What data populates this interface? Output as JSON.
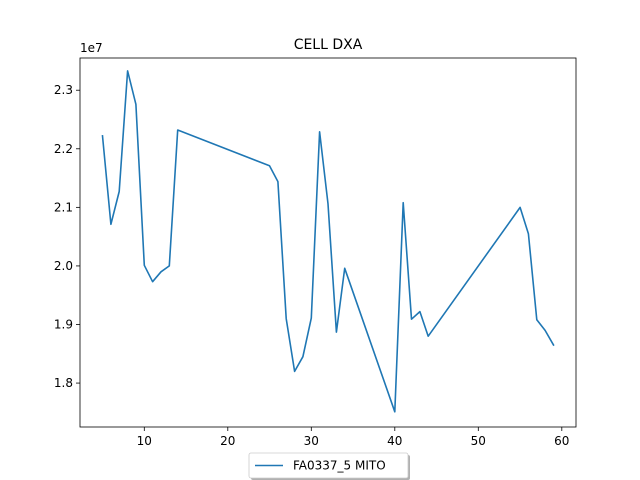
{
  "chart_data": {
    "type": "line",
    "title": "CELL DXA",
    "xlabel": "",
    "ylabel": "",
    "y_offset_label": "1e7",
    "xlim": [
      2.3,
      61.7
    ],
    "ylim": [
      17250000,
      23550000
    ],
    "x_ticks": [
      10,
      20,
      30,
      40,
      50,
      60
    ],
    "y_ticks": [
      18000000,
      19000000,
      20000000,
      21000000,
      22000000,
      23000000
    ],
    "y_tick_labels": [
      "1.8",
      "1.9",
      "2.0",
      "2.1",
      "2.2",
      "2.3"
    ],
    "grid": false,
    "legend_position": "lower-center-outside",
    "series": [
      {
        "name": "FA0337_5 MITO",
        "color": "#1f77b4",
        "x": [
          5,
          6,
          7,
          8,
          9,
          10,
          11,
          12,
          13,
          14,
          25,
          26,
          27,
          28,
          29,
          30,
          31,
          32,
          33,
          34,
          40,
          41,
          42,
          43,
          44,
          55,
          56,
          57,
          58,
          59
        ],
        "y": [
          22220000,
          20710000,
          21270000,
          23330000,
          22760000,
          20010000,
          19730000,
          19900000,
          20000000,
          22320000,
          21710000,
          21440000,
          19100000,
          18200000,
          18450000,
          19110000,
          22290000,
          21060000,
          18870000,
          19960000,
          17510000,
          21080000,
          19090000,
          19220000,
          18800000,
          21000000,
          20550000,
          19080000,
          18900000,
          18650000
        ]
      }
    ]
  }
}
